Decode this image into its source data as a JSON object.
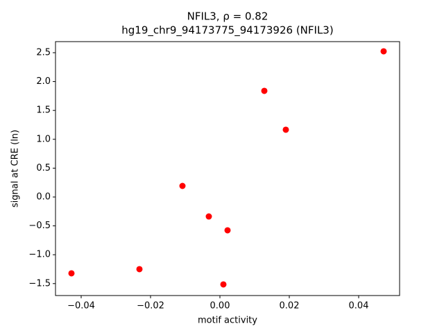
{
  "chart_data": {
    "type": "scatter",
    "title": [
      "NFIL3, ρ = 0.82",
      "hg19_chr9_94173775_94173926 (NFIL3)"
    ],
    "xlabel": "motif activity",
    "ylabel": "signal at CRE (ln)",
    "x": [
      0.0472,
      0.0128,
      0.019,
      -0.0108,
      -0.0032,
      0.0022,
      -0.0232,
      -0.0428,
      0.001
    ],
    "values": [
      2.524,
      1.839,
      1.166,
      0.192,
      -0.337,
      -0.577,
      -1.25,
      -1.322,
      -1.514
    ],
    "color": "#ff0000",
    "xlim": [
      -0.0474,
      0.0518
    ],
    "ylim": [
      -1.707,
      2.692
    ],
    "xticks": [
      {
        "value": -0.04,
        "label": "−0.04"
      },
      {
        "value": -0.02,
        "label": "−0.02"
      },
      {
        "value": 0,
        "label": "0.00"
      },
      {
        "value": 0.02,
        "label": "0.02"
      },
      {
        "value": 0.04,
        "label": "0.04"
      }
    ],
    "yticks": [
      {
        "value": -1.5,
        "label": "−1.5"
      },
      {
        "value": -1,
        "label": "−1.0"
      },
      {
        "value": -0.5,
        "label": "−0.5"
      },
      {
        "value": 0,
        "label": "0.0"
      },
      {
        "value": 0.5,
        "label": "0.5"
      },
      {
        "value": 1,
        "label": "1.0"
      },
      {
        "value": 1.5,
        "label": "1.5"
      },
      {
        "value": 2,
        "label": "2.0"
      },
      {
        "value": 2.5,
        "label": "2.5"
      }
    ]
  }
}
